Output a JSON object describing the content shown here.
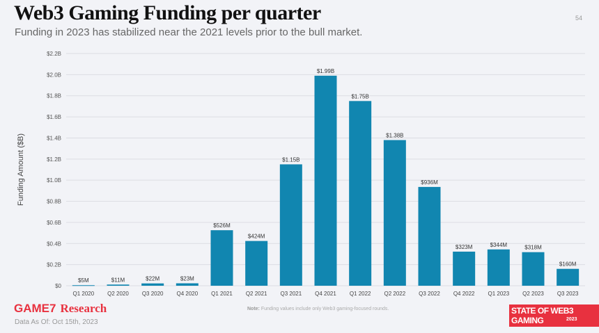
{
  "header": {
    "title": "Web3 Gaming Funding per quarter",
    "subtitle": "Funding in 2023 has stabilized near the 2021 levels prior to the bull market.",
    "page_number": "54"
  },
  "footer": {
    "logo": "GAME7",
    "logo_suffix": "Research",
    "data_as_of": "Data As Of: Oct 15th, 2023",
    "note_label": "Note:",
    "note": "Funding values include only Web3 gaming-focused rounds.",
    "badge": "STATE OF WEB3 GAMING",
    "badge_year": "2023"
  },
  "colors": {
    "bar": "#1186b0",
    "brand": "#e8313f"
  },
  "chart_data": {
    "type": "bar",
    "ylabel": "Funding Amount ($B)",
    "ylim": [
      0,
      2.2
    ],
    "grid": true,
    "yticks": [
      0,
      0.2,
      0.4,
      0.6,
      0.8,
      1.0,
      1.2,
      1.4,
      1.6,
      1.8,
      2.0,
      2.2
    ],
    "ytick_labels": [
      "$0",
      "$0.2B",
      "$0.4B",
      "$0.6B",
      "$0.8B",
      "$1.0B",
      "$1.2B",
      "$1.4B",
      "$1.6B",
      "$1.8B",
      "$2.0B",
      "$2.2B"
    ],
    "categories": [
      "Q1 2020",
      "Q2 2020",
      "Q3 2020",
      "Q4 2020",
      "Q1 2021",
      "Q2 2021",
      "Q3 2021",
      "Q4 2021",
      "Q1 2022",
      "Q2 2022",
      "Q3 2022",
      "Q4 2022",
      "Q1 2023",
      "Q2 2023",
      "Q3 2023"
    ],
    "values": [
      0.005,
      0.011,
      0.022,
      0.023,
      0.526,
      0.424,
      1.15,
      1.99,
      1.75,
      1.38,
      0.936,
      0.323,
      0.344,
      0.318,
      0.16
    ],
    "data_labels": [
      "$5M",
      "$11M",
      "$22M",
      "$23M",
      "$526M",
      "$424M",
      "$1.15B",
      "$1.99B",
      "$1.75B",
      "$1.38B",
      "$936M",
      "$323M",
      "$344M",
      "$318M",
      "$160M"
    ]
  }
}
